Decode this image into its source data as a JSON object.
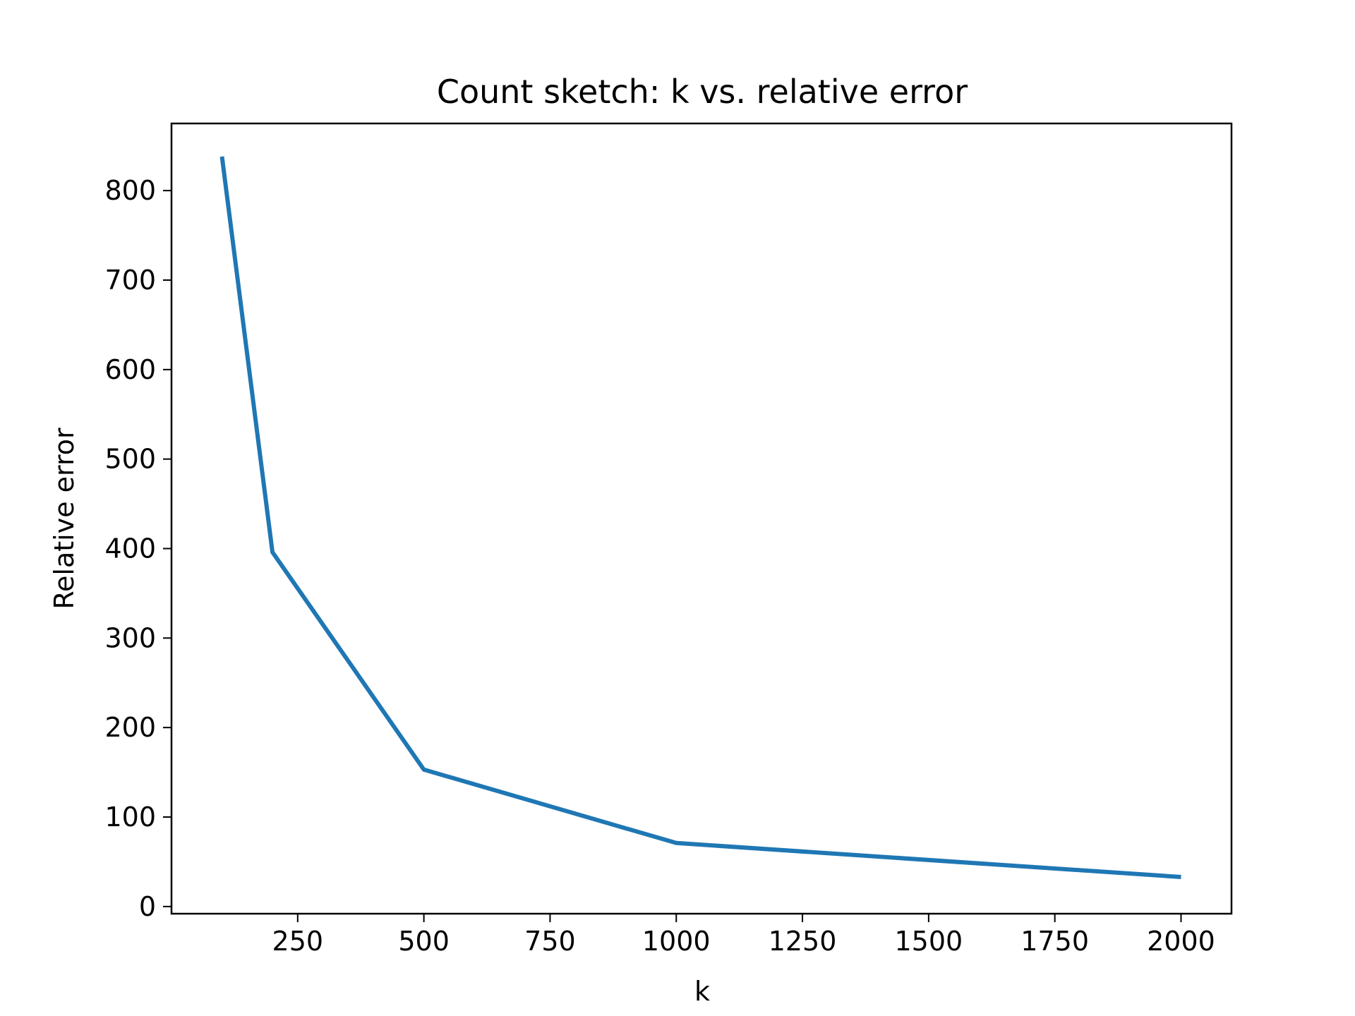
{
  "chart_data": {
    "type": "line",
    "title": "Count sketch: k vs. relative error",
    "xlabel": "k",
    "ylabel": "Relative error",
    "xlim": [
      0,
      2100
    ],
    "ylim": [
      -8,
      875
    ],
    "xticks": [
      250,
      500,
      750,
      1000,
      1250,
      1500,
      1750,
      2000
    ],
    "xtick_labels": [
      "250",
      "500",
      "750",
      "1000",
      "1250",
      "1500",
      "1750",
      "2000"
    ],
    "yticks": [
      0,
      100,
      200,
      300,
      400,
      500,
      600,
      700,
      800
    ],
    "ytick_labels": [
      "0",
      "100",
      "200",
      "300",
      "400",
      "500",
      "600",
      "700",
      "800"
    ],
    "grid": false,
    "series": [
      {
        "color": "#1f77b4",
        "x": [
          100,
          200,
          500,
          1000,
          2000
        ],
        "y": [
          838,
          396,
          153,
          71,
          33
        ]
      }
    ]
  }
}
